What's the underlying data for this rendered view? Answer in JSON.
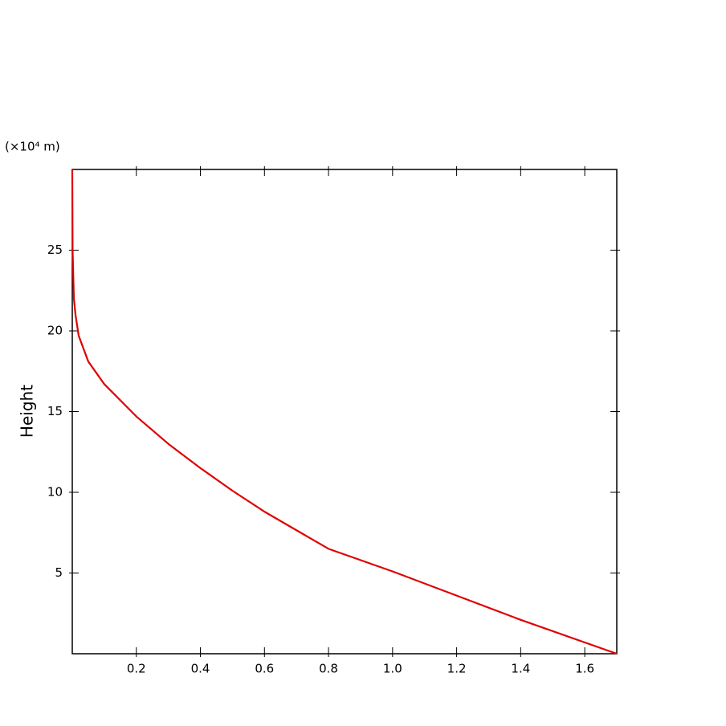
{
  "chart_data": {
    "type": "line",
    "y_label": "Height",
    "y_unit": "(×10⁴ m)",
    "x": [
      1.7,
      1.4,
      1.2,
      1.0,
      0.8,
      0.6,
      0.5,
      0.4,
      0.3,
      0.2,
      0.1,
      0.05,
      0.02,
      0.01,
      0.005,
      0.001,
      0
    ],
    "series": [
      {
        "color": "#e00000",
        "values": [
          0,
          2.1,
          3.6,
          5.1,
          6.5,
          8.8,
          10.1,
          11.5,
          13.0,
          14.7,
          16.7,
          18.1,
          19.7,
          21,
          22,
          25,
          30
        ]
      }
    ],
    "xlim": [
      0,
      1.7
    ],
    "ylim": [
      0,
      30
    ],
    "xticks": [
      0.2,
      0.4,
      0.6,
      0.8,
      {
        "value": 1,
        "label": "1.0"
      },
      1.2,
      1.4,
      1.6
    ],
    "yticks": [
      5,
      10,
      15,
      20,
      25
    ]
  }
}
